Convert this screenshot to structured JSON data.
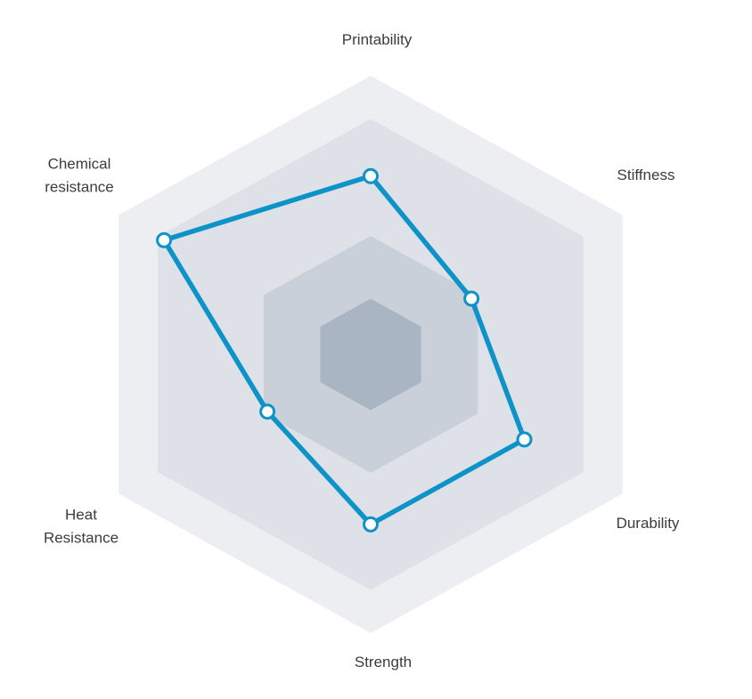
{
  "chart_data": {
    "type": "radar",
    "title": "",
    "axes": [
      {
        "label": "Printability",
        "value": 0.64
      },
      {
        "label": "Stiffness",
        "value": 0.4
      },
      {
        "label": "Durability",
        "value": 0.61
      },
      {
        "label": "Strength",
        "value": 0.61
      },
      {
        "label": "Heat Resistance",
        "value": 0.41
      },
      {
        "label": "Chemical resistance",
        "value": 0.82
      }
    ],
    "scale": {
      "min": 0,
      "max": 1,
      "grid_rings": [
        1.0,
        0.845,
        0.425,
        0.2
      ],
      "tick_labels_visible": false
    },
    "legend": {
      "visible": false
    },
    "colors": {
      "ring_fills": [
        "#eceef2",
        "#dee2e8",
        "#c9d0d9",
        "#a9b5c2"
      ],
      "line": "#0e93c9",
      "point_fill": "#ffffff",
      "label_text": "#3c3c3c",
      "background": "#ffffff"
    },
    "style": {
      "line_width": 5.5,
      "point_radius": 7.5,
      "point_stroke_width": 3
    }
  }
}
